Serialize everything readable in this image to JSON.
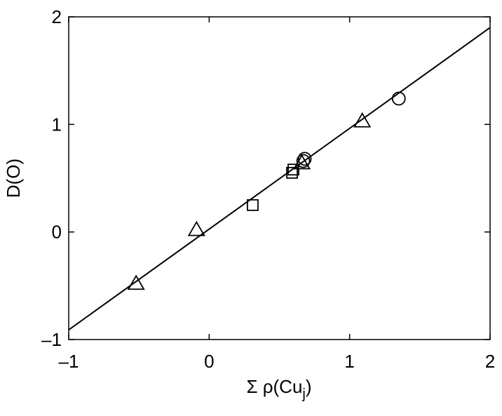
{
  "chart_data": {
    "type": "scatter",
    "xlabel": [
      "Σ ρ(Cu",
      "j",
      ")"
    ],
    "ylabel": "D(O)",
    "xlim": [
      -1,
      2
    ],
    "ylim": [
      -1,
      2
    ],
    "xticks": [
      {
        "value": -1,
        "label": "–1"
      },
      0,
      1,
      2
    ],
    "yticks": [
      {
        "value": -1,
        "label": "–1"
      },
      0,
      1,
      2
    ],
    "color": "#000000",
    "series": [
      {
        "marker": "triangle",
        "x": [
          -0.52,
          -0.09,
          0.66,
          1.09
        ],
        "values": [
          -0.48,
          0.02,
          0.64,
          1.03
        ]
      },
      {
        "marker": "square",
        "x": [
          0.31,
          0.59,
          0.6
        ],
        "values": [
          0.25,
          0.55,
          0.58
        ]
      },
      {
        "marker": "circle",
        "x": [
          0.67,
          0.68,
          1.35
        ],
        "values": [
          0.66,
          0.68,
          1.24
        ]
      },
      {
        "marker": "line",
        "x": [
          -1,
          2
        ],
        "values": [
          -0.91,
          1.9
        ]
      }
    ]
  }
}
